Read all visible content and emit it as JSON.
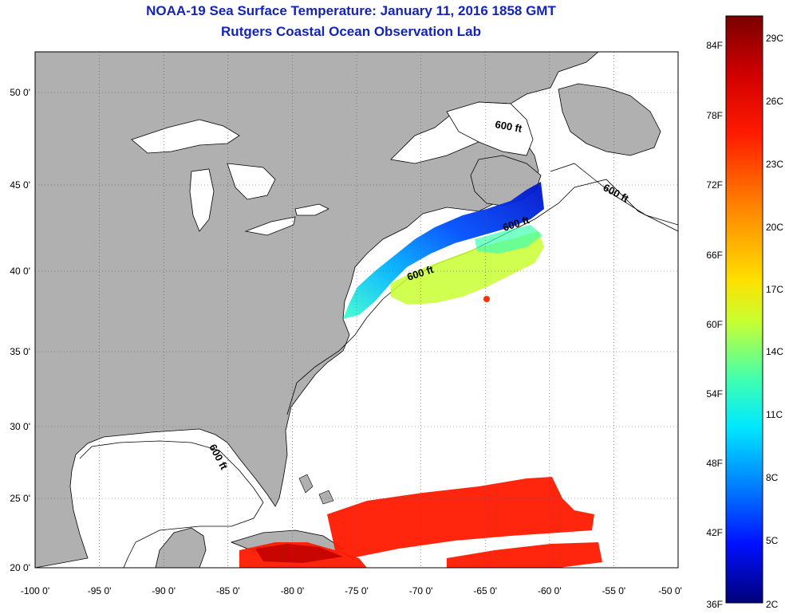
{
  "header": {
    "title": "NOAA-19 Sea Surface Temperature:  January 11, 2016 1858 GMT",
    "subtitle": "Rutgers Coastal Ocean Observation Lab"
  },
  "map": {
    "lon_ticks": [
      "-100 0'",
      "-95 0'",
      "-90 0'",
      "-85 0'",
      "-80 0'",
      "-75 0'",
      "-70 0'",
      "-65 0'",
      "-60 0'",
      "-55 0'",
      "-50 0'"
    ],
    "lat_ticks": [
      "50 0'",
      "45 0'",
      "40 0'",
      "35 0'",
      "30 0'",
      "25 0'",
      "20 0'"
    ],
    "contour_label": "600 ft",
    "colors": {
      "land": "#b0b0b0",
      "water": "#ffffff",
      "gridline": "#555555"
    }
  },
  "colorbar": {
    "fahrenheit_labels": [
      "84F",
      "78F",
      "72F",
      "66F",
      "60F",
      "54F",
      "48F",
      "42F",
      "36F"
    ],
    "celsius_labels": [
      "29C",
      "26C",
      "23C",
      "20C",
      "17C",
      "14C",
      "11C",
      "8C",
      "5C",
      "2C"
    ],
    "colors": [
      "#7a0000",
      "#ff0000",
      "#ff6a00",
      "#ffd800",
      "#c8ff32",
      "#3cffc8",
      "#00c8ff",
      "#0064ff",
      "#0000d2",
      "#000078"
    ]
  }
}
